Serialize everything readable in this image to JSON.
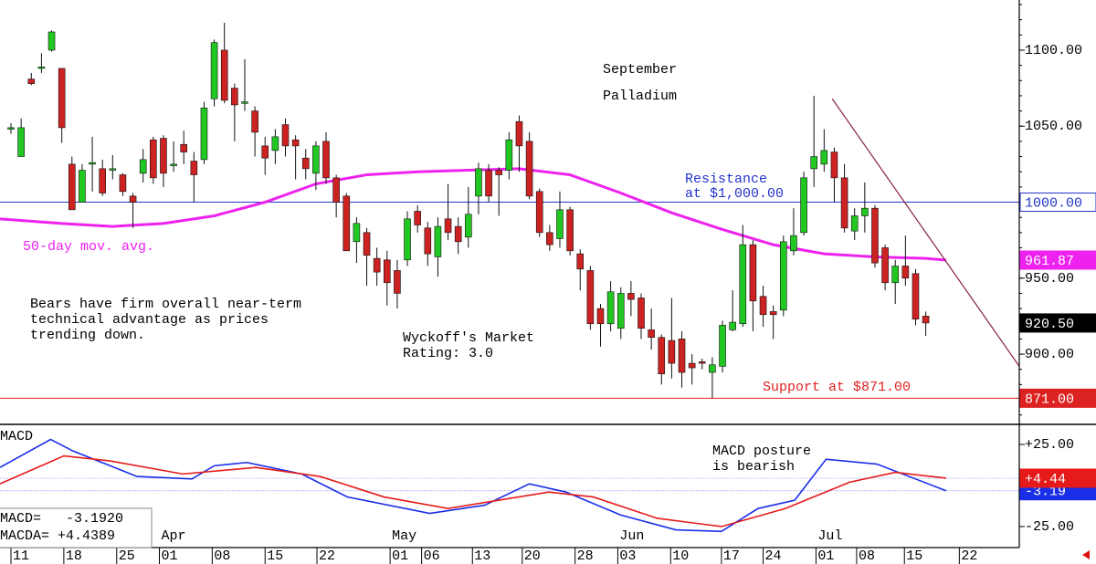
{
  "chart_data": {
    "type": "candlestick",
    "title": [
      "September",
      "Palladium"
    ],
    "up_color": "#22c822",
    "down_color": "#cc2222",
    "xlim": [
      -1.08,
      99.2
    ],
    "ylim": [
      853.8,
      1133
    ],
    "yticks": [
      {
        "value": 1100,
        "label": "1100.00"
      },
      {
        "value": 1050,
        "label": "1050.00"
      },
      {
        "value": 950,
        "label": "950.00"
      },
      {
        "value": 900,
        "label": "900.00"
      }
    ],
    "xticks": [
      {
        "value": 0,
        "label": "11"
      },
      {
        "value": 5.2,
        "label": "18"
      },
      {
        "value": 10.4,
        "label": "25"
      },
      {
        "value": 14.6,
        "label": "01"
      },
      {
        "value": 19.8,
        "label": "08"
      },
      {
        "value": 25,
        "label": "15"
      },
      {
        "value": 30.1,
        "label": "22"
      },
      {
        "value": 37.3,
        "label": "01"
      },
      {
        "value": 40.4,
        "label": "06"
      },
      {
        "value": 45.4,
        "label": "13"
      },
      {
        "value": 50.3,
        "label": "20"
      },
      {
        "value": 55.5,
        "label": "28"
      },
      {
        "value": 59.7,
        "label": "03"
      },
      {
        "value": 64.9,
        "label": "10"
      },
      {
        "value": 69.9,
        "label": "17"
      },
      {
        "value": 74,
        "label": "24"
      },
      {
        "value": 79.2,
        "label": "01"
      },
      {
        "value": 83.2,
        "label": "08"
      },
      {
        "value": 87.9,
        "label": "15"
      },
      {
        "value": 93.3,
        "label": "22"
      }
    ],
    "months": [
      {
        "value": 14.6,
        "label": "Apr"
      },
      {
        "value": 37.3,
        "label": "May"
      },
      {
        "value": 59.7,
        "label": "Jun"
      },
      {
        "value": 79.2,
        "label": "Jul"
      }
    ],
    "open": [
      1048,
      1030,
      1081,
      1088,
      1100,
      1088,
      1025,
      1000,
      1025,
      1022,
      1021,
      1018,
      1004,
      1019,
      1041,
      1042,
      1024,
      1038,
      1027,
      1028,
      1068,
      1100,
      1075,
      1065,
      1060,
      1037,
      1034,
      1051,
      1041,
      1029,
      1019,
      1040,
      1016,
      1004,
      974,
      980,
      963,
      962,
      955,
      962,
      994,
      983,
      964,
      989,
      984,
      977,
      1004,
      1021,
      1021,
      1021,
      1053,
      1040,
      1007,
      980,
      976,
      995,
      966,
      955,
      930,
      920,
      917,
      940,
      937,
      916,
      911,
      909,
      910,
      894,
      895,
      888,
      892,
      916,
      920,
      972,
      938,
      928,
      929,
      968,
      980,
      1022,
      1025,
      1033,
      1016,
      981,
      991,
      996,
      970,
      947,
      958,
      953,
      925
    ],
    "high": [
      1052,
      1055,
      1085,
      1098,
      1113,
      1088,
      1030,
      1025,
      1043,
      1028,
      1031,
      1019,
      1006,
      1035,
      1043,
      1044,
      1040,
      1047,
      1033,
      1066,
      1107,
      1118,
      1078,
      1094,
      1063,
      1043,
      1048,
      1055,
      1044,
      1035,
      1040,
      1046,
      1018,
      1006,
      990,
      983,
      970,
      968,
      962,
      994,
      998,
      987,
      990,
      1012,
      990,
      1010,
      1026,
      1025,
      1023,
      1046,
      1057,
      1046,
      1009,
      985,
      1007,
      997,
      969,
      958,
      933,
      948,
      944,
      948,
      940,
      930,
      913,
      937,
      915,
      900,
      897,
      898,
      922,
      942,
      985,
      975,
      945,
      932,
      978,
      996,
      1020,
      1070,
      1048,
      1036,
      1025,
      996,
      1013,
      998,
      972,
      962,
      978,
      956,
      928
    ],
    "low": [
      1045,
      1030,
      1077,
      1085,
      1099,
      1039,
      995,
      1000,
      1007,
      1004,
      1015,
      1004,
      983,
      1013,
      1012,
      1010,
      1020,
      1025,
      1000,
      1025,
      1063,
      1065,
      1040,
      1060,
      1030,
      1018,
      1025,
      1030,
      1015,
      1015,
      1008,
      1012,
      990,
      968,
      960,
      945,
      945,
      932,
      930,
      958,
      980,
      958,
      951,
      975,
      966,
      970,
      992,
      1000,
      991,
      1015,
      1020,
      1002,
      977,
      968,
      970,
      965,
      942,
      916,
      905,
      915,
      910,
      925,
      910,
      903,
      880,
      884,
      878,
      880,
      890,
      871,
      888,
      915,
      918,
      915,
      918,
      910,
      925,
      965,
      978,
      1010,
      1020,
      1000,
      980,
      975,
      980,
      957,
      942,
      933,
      945,
      919,
      912
    ],
    "close": [
      1049,
      1049,
      1078,
      1089,
      1112,
      1049,
      995,
      1021,
      1026,
      1006,
      1022,
      1007,
      1000,
      1028,
      1016,
      1019,
      1025,
      1033,
      1018,
      1062,
      1105,
      1067,
      1064,
      1066,
      1046,
      1029,
      1043,
      1037,
      1037,
      1022,
      1037,
      1016,
      1000,
      968,
      986,
      965,
      954,
      947,
      940,
      989,
      985,
      966,
      984,
      980,
      974,
      992,
      1022,
      1004,
      1018,
      1041,
      1037,
      1004,
      980,
      972,
      995,
      968,
      956,
      920,
      920,
      941,
      940,
      936,
      917,
      911,
      887,
      894,
      888,
      891,
      894,
      893,
      919,
      921,
      972,
      935,
      926,
      926,
      974,
      978,
      1016,
      1030,
      1034,
      1016,
      983,
      991,
      996,
      960,
      947,
      958,
      950,
      923,
      920.5
    ],
    "last_label": "920.50",
    "ma": {
      "name": "50-day mov. avg.",
      "color": "#ee22ee",
      "end_label": "961.87",
      "x": [
        -1.08,
        5,
        10,
        15,
        20,
        25,
        30,
        35,
        40,
        45,
        50,
        55,
        60,
        65,
        70,
        75,
        80,
        85,
        90,
        92
      ],
      "values": [
        989,
        986,
        984,
        986,
        991,
        1000,
        1012,
        1018,
        1020,
        1021,
        1022,
        1018,
        1006,
        993,
        982,
        972,
        966,
        964,
        963,
        961.87
      ]
    },
    "resistance": {
      "value": 1000,
      "label": "1000.00",
      "text": [
        "Resistance",
        "at $1,000.00"
      ],
      "color": "#2233cc"
    },
    "support": {
      "value": 871,
      "label": "871.00",
      "text": [
        "Support at $871.00"
      ],
      "color": "#dd2222"
    },
    "trendline": {
      "x": [
        80.8,
        99.2
      ],
      "y": [
        1068,
        892
      ],
      "color": "#882244"
    },
    "notes": [
      [
        "Bears have firm overall near-term",
        "technical advantage as prices",
        "trending down."
      ],
      [
        "Wyckoff's Market",
        "Rating: 3.0"
      ]
    ],
    "macd": {
      "label": "MACD",
      "ylim": [
        -37.8,
        37.2
      ],
      "yticks": [
        {
          "value": 25,
          "label": "+25.00"
        },
        {
          "value": -25,
          "label": "-25.00"
        }
      ],
      "note": [
        "MACD posture",
        "is bearish"
      ],
      "readout": [
        "MACD=   -3.1920",
        "MACDA= +4.4389"
      ],
      "series": [
        {
          "name": "MACD",
          "color": "#1a2ee6",
          "end_label": "-3.19",
          "x": [
            -1.08,
            3.9,
            6.1,
            12.4,
            17.8,
            20,
            23.2,
            28.6,
            33.1,
            41.2,
            46.6,
            51,
            54.6,
            60,
            65.4,
            69.9,
            73.5,
            77.1,
            80.2,
            85.2,
            92
          ],
          "values": [
            11,
            28,
            21,
            5.5,
            4,
            12,
            14,
            7,
            -7,
            -17,
            -12,
            1,
            -4,
            -18,
            -27,
            -28,
            -14,
            -9,
            16,
            13,
            -3.19
          ]
        },
        {
          "name": "MACDA",
          "color": "#e61a1a",
          "end_label": "+4.44",
          "x": [
            -1.08,
            5.2,
            9.7,
            16.9,
            24.1,
            30.4,
            36.7,
            43,
            52.9,
            57.3,
            63.6,
            69.9,
            76.2,
            82.5,
            87,
            92
          ],
          "values": [
            1,
            18,
            15,
            7,
            11,
            5.5,
            -7,
            -14,
            -4,
            -7,
            -20,
            -25,
            -14,
            2,
            8,
            4.44
          ]
        }
      ]
    }
  }
}
